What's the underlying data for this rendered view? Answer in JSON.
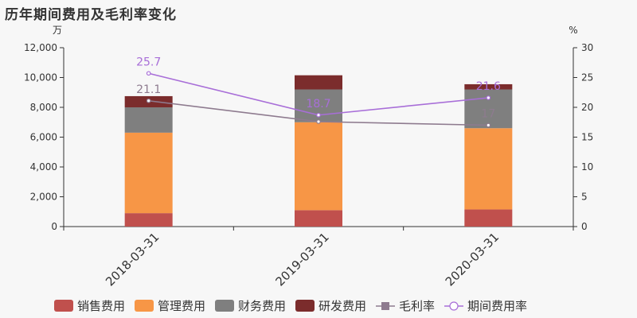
{
  "chart_data": {
    "type": "bar",
    "title": "历年期间费用及毛利率变化",
    "stacked": true,
    "categories": [
      "2018-03-31",
      "2019-03-31",
      "2020-03-31"
    ],
    "left_axis": {
      "unit": "万",
      "ylim": [
        0,
        12000
      ],
      "ticks": [
        "0",
        "2,000",
        "4,000",
        "6,000",
        "8,000",
        "10,000",
        "12,000"
      ],
      "tick_values": [
        0,
        2000,
        4000,
        6000,
        8000,
        10000,
        12000
      ]
    },
    "right_axis": {
      "unit": "%",
      "ylim": [
        0,
        30
      ],
      "ticks": [
        "0",
        "5",
        "10",
        "15",
        "20",
        "25",
        "30"
      ],
      "tick_values": [
        0,
        5,
        10,
        15,
        20,
        25,
        30
      ]
    },
    "series": [
      {
        "name": "销售费用",
        "kind": "bar",
        "axis": "left",
        "color": "#c0504d",
        "values": [
          900,
          1100,
          1150
        ]
      },
      {
        "name": "管理费用",
        "kind": "bar",
        "axis": "left",
        "color": "#f79646",
        "values": [
          5400,
          5900,
          5450
        ]
      },
      {
        "name": "财务费用",
        "kind": "bar",
        "axis": "left",
        "color": "#7f7f7f",
        "values": [
          1700,
          2200,
          2600
        ]
      },
      {
        "name": "研发费用",
        "kind": "bar",
        "axis": "left",
        "color": "#7b2c2c",
        "values": [
          750,
          950,
          350
        ]
      },
      {
        "name": "毛利率",
        "kind": "line",
        "axis": "right",
        "color": "#8e7b8f",
        "marker": "square",
        "values": [
          21.1,
          17.6,
          17.0
        ],
        "labels": [
          "21.1",
          "",
          "17"
        ]
      },
      {
        "name": "期间费用率",
        "kind": "line",
        "axis": "right",
        "color": "#a86ed8",
        "marker": "circle",
        "values": [
          25.7,
          18.7,
          21.6
        ],
        "labels": [
          "25.7",
          "18.7",
          "21.6"
        ]
      }
    ],
    "grid": false,
    "legend_position": "bottom"
  }
}
